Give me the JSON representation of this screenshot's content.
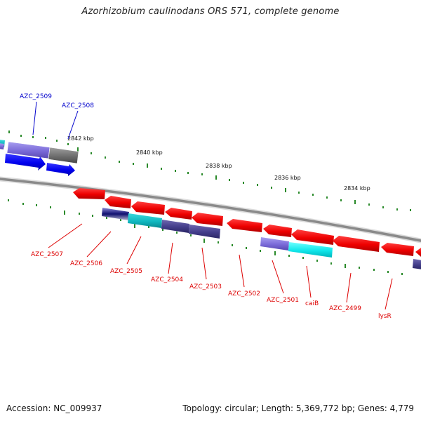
{
  "header": {
    "title": "Azorhizobium caulinodans ORS 571, complete genome"
  },
  "footer": {
    "accession": "Accession: NC_009937",
    "summary": "Topology: circular; Length: 5,369,772 bp; Genes: 4,779"
  },
  "ruler": {
    "ticks": [
      "2842 kbp",
      "2840 kbp",
      "2838 kbp",
      "2836 kbp",
      "2834 kbp"
    ]
  },
  "colors": {
    "forward_label": "#0000cc",
    "reverse_label": "#dd0000",
    "tick_green": "#22882a",
    "backbone": "#888888"
  },
  "features": {
    "forward_labels": [
      "AZC_2509",
      "AZC_2508"
    ],
    "reverse_labels": [
      "AZC_2507",
      "AZC_2506",
      "AZC_2505",
      "AZC_2504",
      "AZC_2503",
      "AZC_2502",
      "AZC_2501",
      "caiB",
      "AZC_2499",
      "lysR"
    ]
  }
}
